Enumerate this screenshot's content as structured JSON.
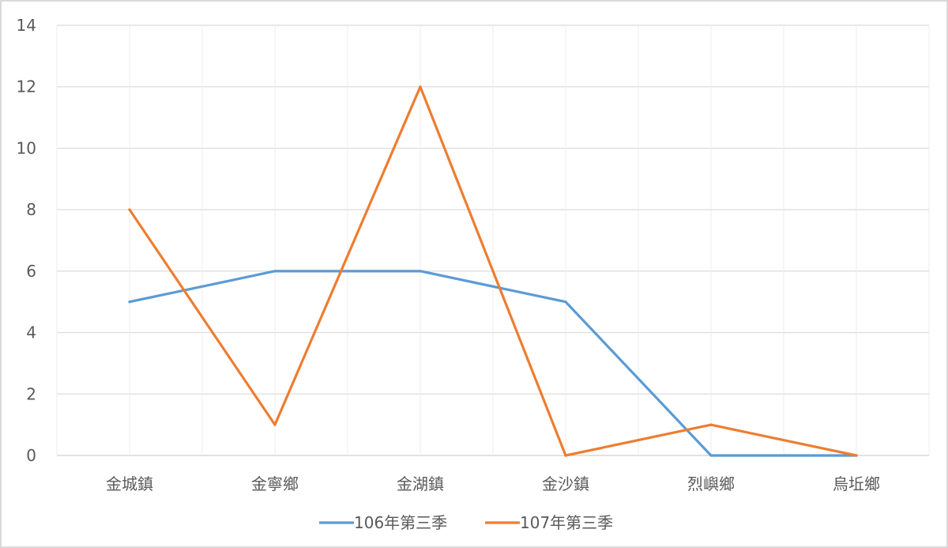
{
  "chart_data": {
    "type": "line",
    "title": "",
    "xlabel": "",
    "ylabel": "",
    "categories": [
      "金城鎮",
      "金寧鄉",
      "金湖鎮",
      "金沙鎮",
      "烈嶼鄉",
      "烏坵鄉"
    ],
    "series": [
      {
        "name": "106年第三季",
        "color": "#5b9bd5",
        "values": [
          5,
          6,
          6,
          5,
          0,
          0
        ]
      },
      {
        "name": "107年第三季",
        "color": "#ed7d31",
        "values": [
          8,
          1,
          12,
          0,
          1,
          0
        ]
      }
    ],
    "ylim": [
      0,
      14
    ],
    "yticks": [
      "0",
      "2",
      "4",
      "6",
      "8",
      "10",
      "12",
      "14"
    ],
    "grid": true,
    "legend_position": "bottom"
  }
}
